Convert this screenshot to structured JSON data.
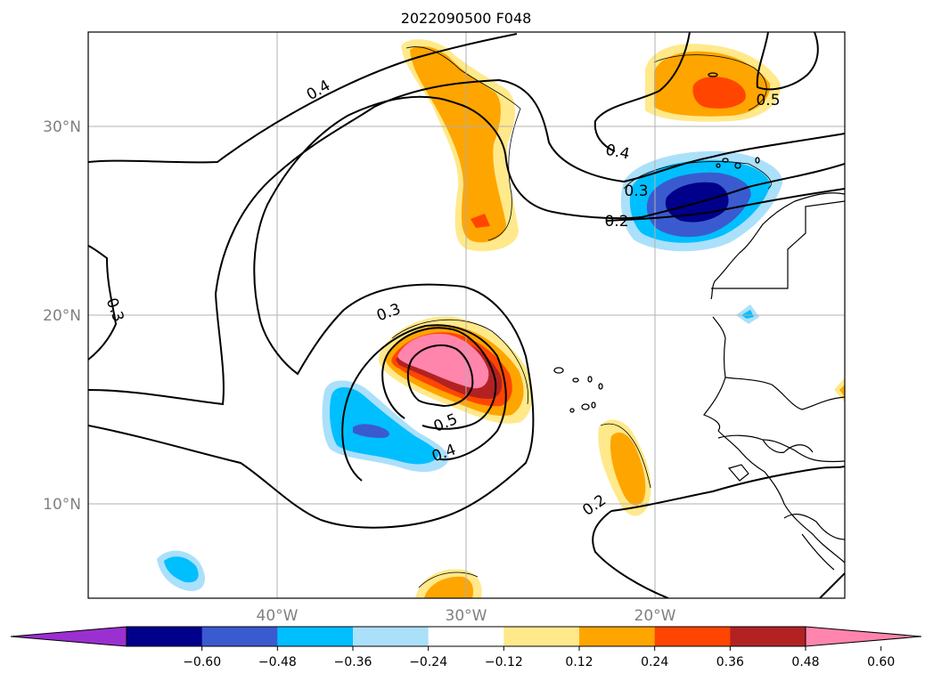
{
  "title": "2022090500 F048",
  "lat_labels": [
    "30°N",
    "20°N",
    "10°N"
  ],
  "lon_labels": [
    "40°W",
    "30°W",
    "20°W"
  ],
  "map_extent": {
    "lon_min": -50,
    "lon_max": -10,
    "lat_min": 5,
    "lat_max": 35
  },
  "contour_labels": [
    "0.4",
    "0.3",
    "0.3",
    "0.5",
    "0.4",
    "0.2",
    "0.4",
    "0.3",
    "0.2",
    "0.5"
  ],
  "colorbar": {
    "ticks": [
      "−0.60",
      "−0.48",
      "−0.36",
      "−0.24",
      "−0.12",
      "0.12",
      "0.24",
      "0.36",
      "0.48",
      "0.60"
    ],
    "colors": [
      "#9b30d0",
      "#00008b",
      "#3a5bcf",
      "#00bfff",
      "#abe0fa",
      "#ffffff",
      "#ffe98a",
      "#ffa500",
      "#ff4500",
      "#b22222",
      "#ff85ad"
    ],
    "extend": "both"
  },
  "colors": {
    "neg1": "#abe0fa",
    "neg2": "#00bfff",
    "neg3": "#3a5bcf",
    "neg4": "#00008b",
    "pos1": "#ffe98a",
    "pos2": "#ffa500",
    "pos3": "#ff4500",
    "pos4": "#b22222",
    "pos5": "#ff85ad",
    "grid": "#b0b0b0",
    "contour": "#000000"
  }
}
